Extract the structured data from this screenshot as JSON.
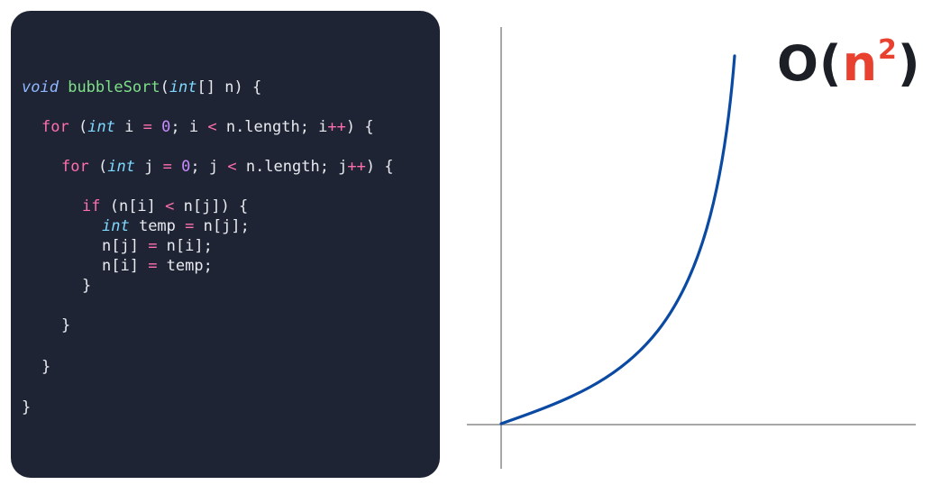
{
  "code": {
    "keywords": {
      "void": "void",
      "int": "int",
      "for": "for",
      "if": "if"
    },
    "function_name": "bubbleSort",
    "lines": {
      "l1_rest": "[] n) {",
      "l2_open": " (",
      "l2_i": " i ",
      "l2_eq": "=",
      "l2_zero": "0",
      "l2_semi1": "; i ",
      "l2_lt": "<",
      "l2_len": " n.length; i",
      "l2_inc": "++",
      "l2_close": ") {",
      "l3_open": " (",
      "l3_j": " j ",
      "l3_eq": "=",
      "l3_zero": "0",
      "l3_semi1": "; j ",
      "l3_lt": "<",
      "l3_len": " n.length; j",
      "l3_inc": "++",
      "l3_close": ") {",
      "l4_open": " (n[i] ",
      "l4_lt": "<",
      "l4_close": " n[j]) {",
      "l5_temp": " temp ",
      "l5_eq": "=",
      "l5_rest": " n[j];",
      "l6_left": "n[j] ",
      "l6_eq": "=",
      "l6_rest": " n[i];",
      "l7_left": "n[i] ",
      "l7_eq": "=",
      "l7_rest": " temp;",
      "brace": "}"
    }
  },
  "complexity": {
    "prefix": "O(",
    "base": "n",
    "exponent": "2",
    "suffix": ")"
  },
  "colors": {
    "panel_bg": "#1e2433",
    "curve": "#0b4aa2",
    "axis": "#8a8a8a",
    "accent": "#e8412f"
  }
}
